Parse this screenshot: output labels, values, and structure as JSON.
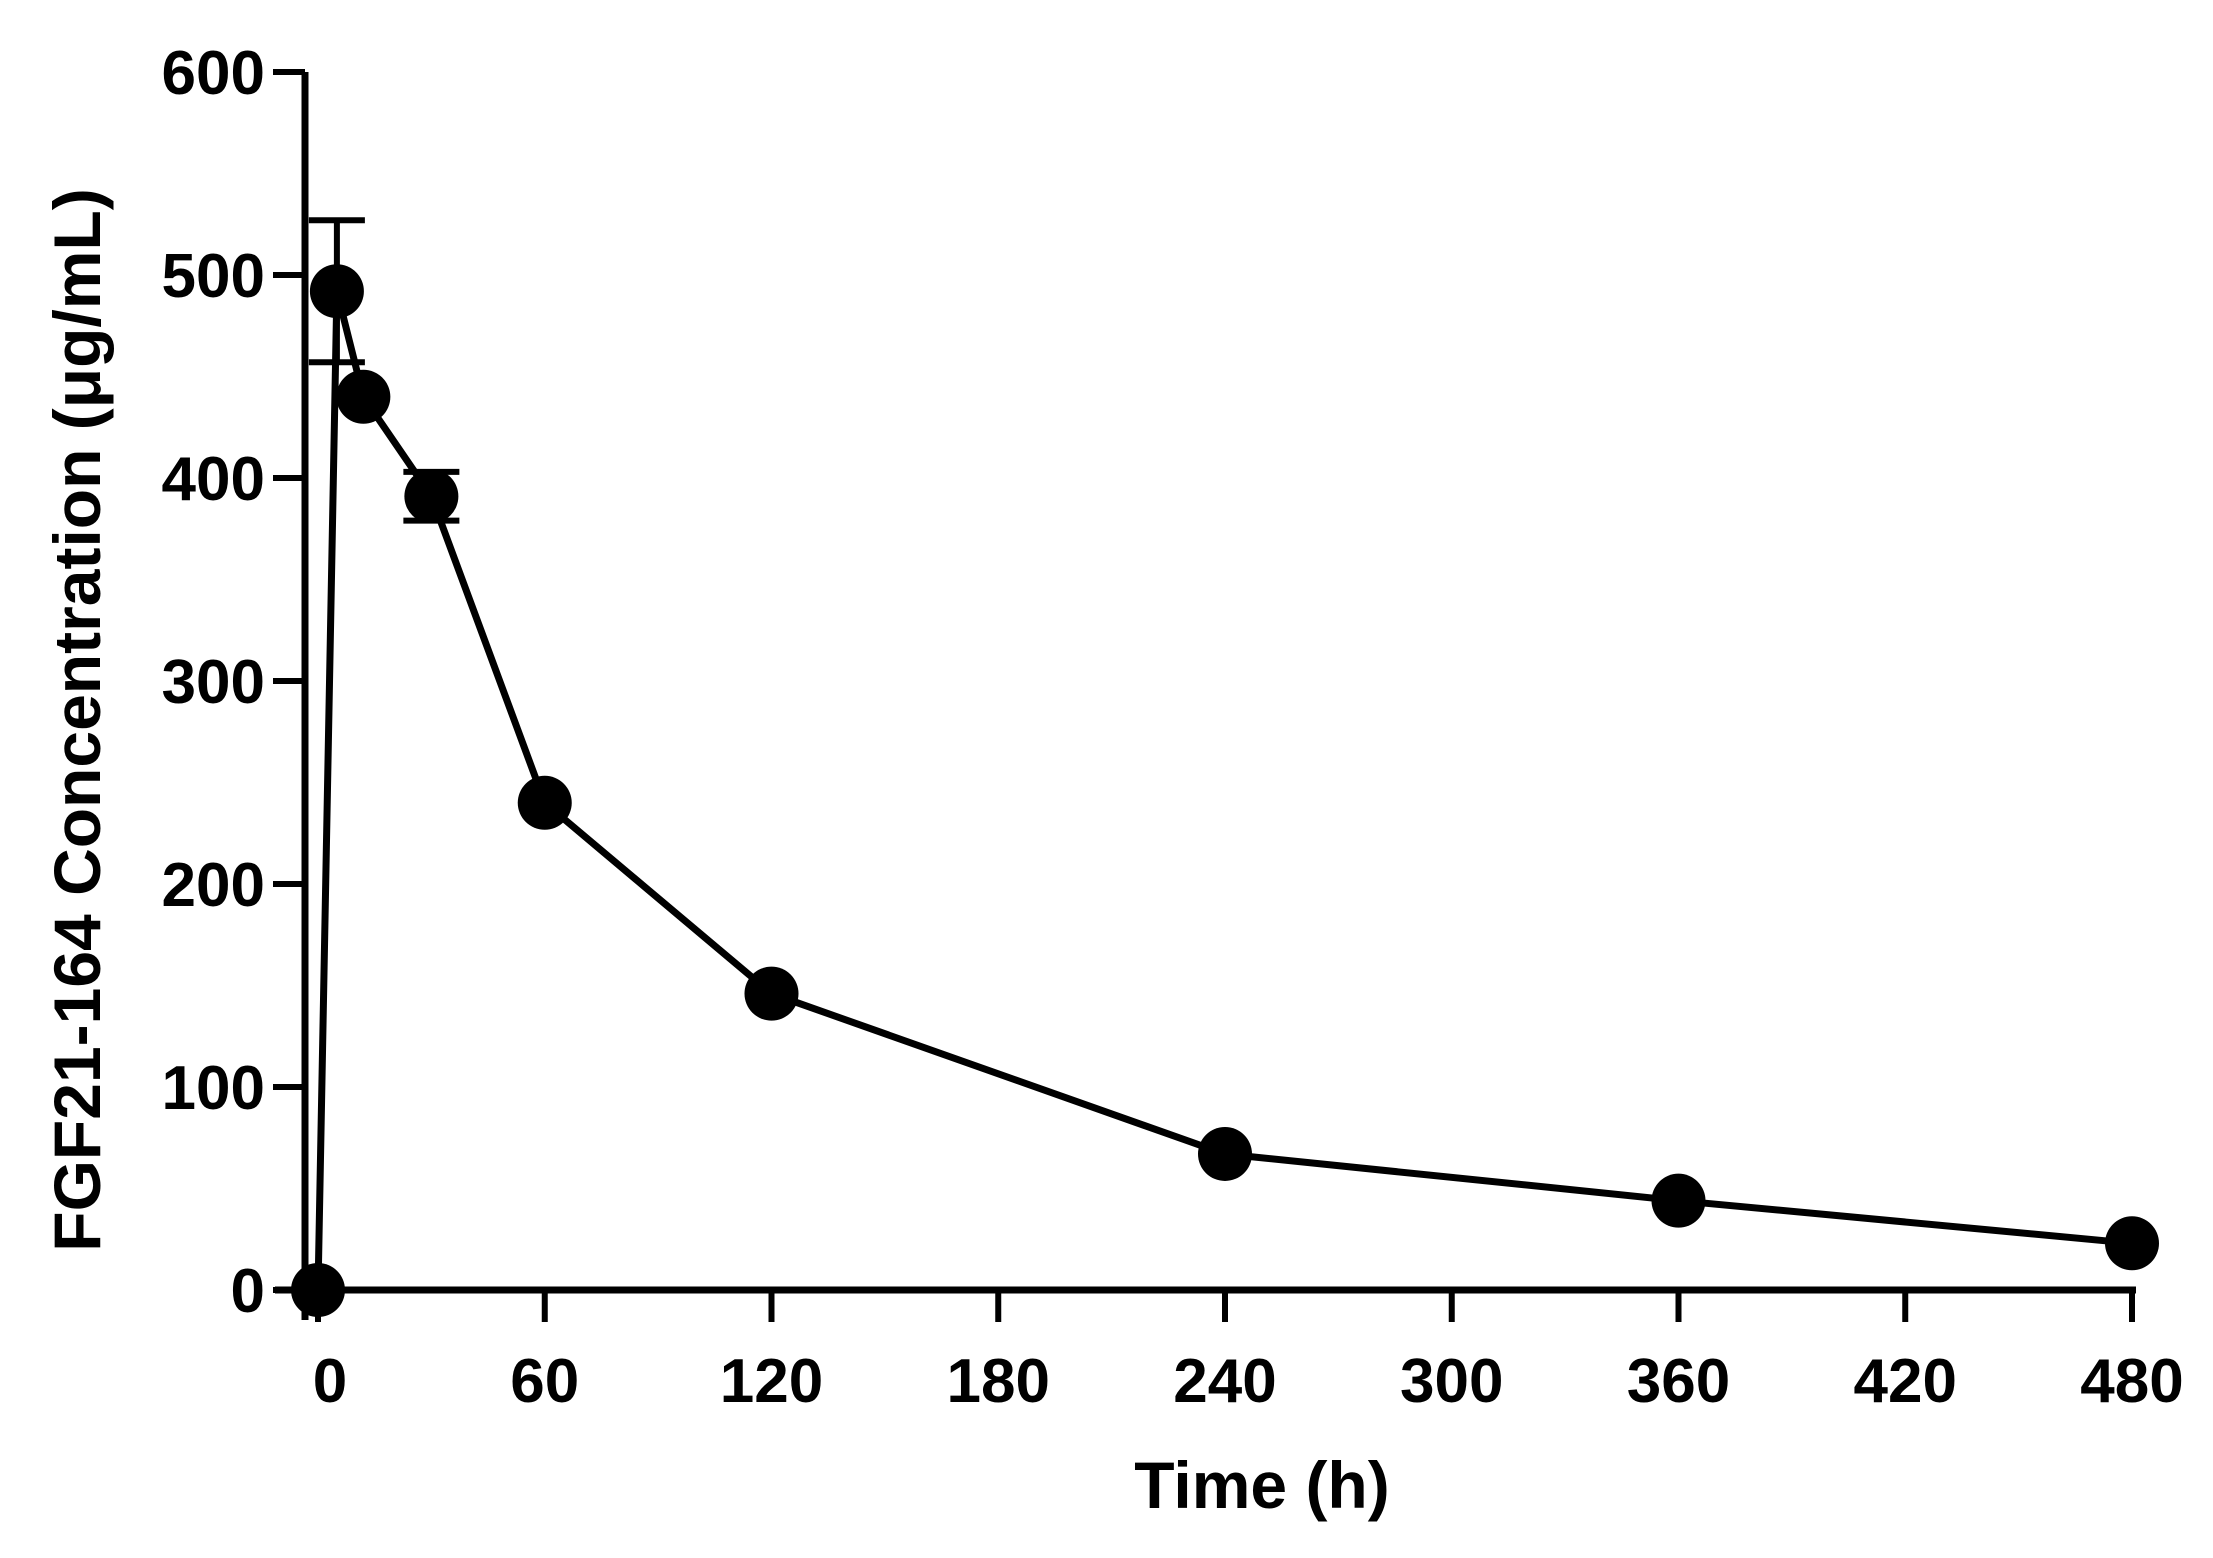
{
  "chart_data": {
    "type": "line",
    "title": "",
    "xlabel": "Time (h)",
    "ylabel": "FGF21-164 Concentration  (μg/mL)",
    "xlim": [
      -5,
      480
    ],
    "ylim": [
      0,
      600
    ],
    "xticks": [
      0,
      60,
      120,
      180,
      240,
      300,
      360,
      420,
      480
    ],
    "yticks": [
      0,
      100,
      200,
      300,
      400,
      500,
      600
    ],
    "grid": false,
    "series": [
      {
        "name": "FGF21-164",
        "marker": "filled-circle",
        "color": "#000000",
        "points": [
          {
            "x": 0,
            "y": 0,
            "err": 0
          },
          {
            "x": 5,
            "y": 492,
            "err": 35
          },
          {
            "x": 12,
            "y": 440,
            "err": 0
          },
          {
            "x": 30,
            "y": 391,
            "err": 12
          },
          {
            "x": 60,
            "y": 240,
            "err": 0
          },
          {
            "x": 120,
            "y": 146,
            "err": 0
          },
          {
            "x": 240,
            "y": 67,
            "err": 0
          },
          {
            "x": 360,
            "y": 44,
            "err": 0
          },
          {
            "x": 480,
            "y": 23,
            "err": 0
          }
        ]
      }
    ]
  }
}
